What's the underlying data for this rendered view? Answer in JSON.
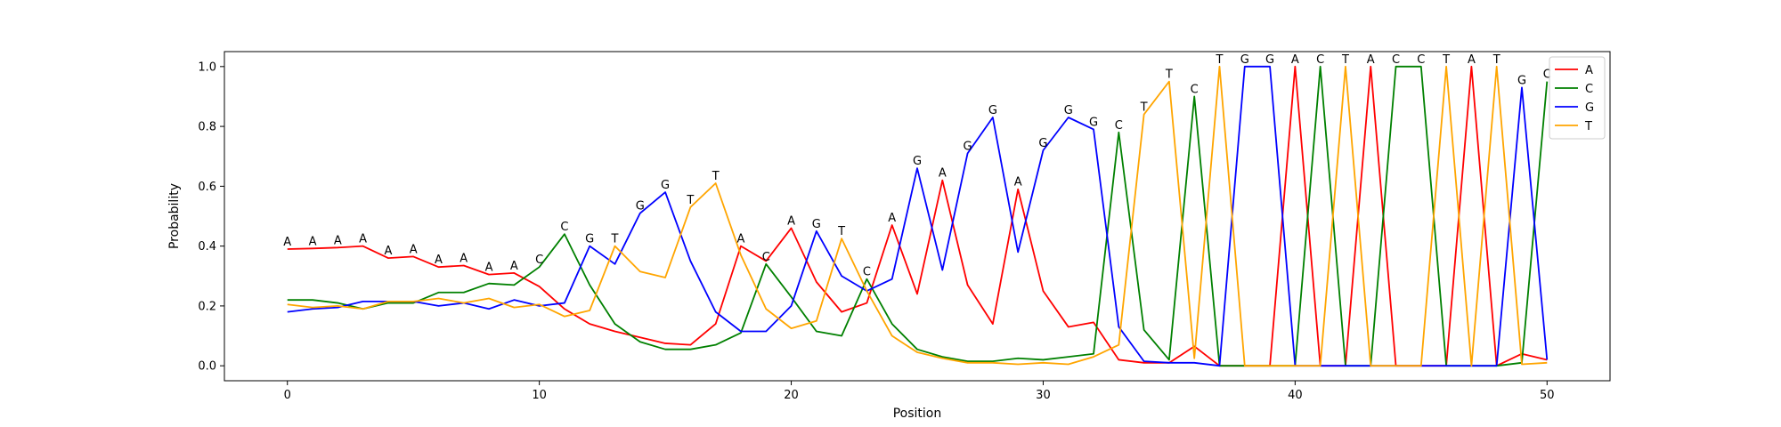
{
  "chart_data": {
    "type": "line",
    "xlabel": "Position",
    "ylabel": "Probability",
    "xlim": [
      -2.5,
      52.5
    ],
    "ylim": [
      -0.05,
      1.05
    ],
    "xticks": [
      0,
      10,
      20,
      30,
      40,
      50
    ],
    "yticks": [
      0.0,
      0.2,
      0.4,
      0.6,
      0.8,
      1.0
    ],
    "xtick_labels": [
      "0",
      "10",
      "20",
      "30",
      "40",
      "50"
    ],
    "ytick_labels": [
      "0.0",
      "0.2",
      "0.4",
      "0.6",
      "0.8",
      "1.0"
    ],
    "grid": false,
    "legend_position": "upper right",
    "x": [
      0,
      1,
      2,
      3,
      4,
      5,
      6,
      7,
      8,
      9,
      10,
      11,
      12,
      13,
      14,
      15,
      16,
      17,
      18,
      19,
      20,
      21,
      22,
      23,
      24,
      25,
      26,
      27,
      28,
      29,
      30,
      31,
      32,
      33,
      34,
      35,
      36,
      37,
      38,
      39,
      40,
      41,
      42,
      43,
      44,
      45,
      46,
      47,
      48,
      49,
      50
    ],
    "series": [
      {
        "name": "A",
        "color": "#ff0000",
        "values": [
          0.39,
          0.392,
          0.395,
          0.4,
          0.36,
          0.365,
          0.33,
          0.335,
          0.305,
          0.31,
          0.265,
          0.19,
          0.14,
          0.115,
          0.095,
          0.075,
          0.07,
          0.14,
          0.4,
          0.35,
          0.46,
          0.28,
          0.18,
          0.21,
          0.47,
          0.24,
          0.62,
          0.27,
          0.14,
          0.59,
          0.25,
          0.13,
          0.145,
          0.02,
          0.01,
          0.01,
          0.065,
          0.0,
          0.0,
          0.0,
          1.0,
          0.0,
          0.0,
          1.0,
          0.0,
          0.0,
          0.0,
          1.0,
          0.0,
          0.04,
          0.02
        ]
      },
      {
        "name": "C",
        "color": "#008000",
        "values": [
          0.22,
          0.22,
          0.21,
          0.19,
          0.21,
          0.21,
          0.245,
          0.245,
          0.275,
          0.27,
          0.33,
          0.44,
          0.27,
          0.14,
          0.08,
          0.055,
          0.055,
          0.07,
          0.11,
          0.34,
          0.23,
          0.115,
          0.1,
          0.29,
          0.14,
          0.055,
          0.03,
          0.015,
          0.015,
          0.025,
          0.02,
          0.03,
          0.04,
          0.78,
          0.12,
          0.02,
          0.9,
          0.0,
          0.0,
          0.0,
          0.0,
          1.0,
          0.0,
          0.0,
          1.0,
          1.0,
          0.0,
          0.0,
          0.0,
          0.01,
          0.95
        ]
      },
      {
        "name": "G",
        "color": "#0000ff",
        "values": [
          0.18,
          0.19,
          0.195,
          0.215,
          0.215,
          0.215,
          0.2,
          0.21,
          0.19,
          0.22,
          0.2,
          0.21,
          0.4,
          0.34,
          0.51,
          0.58,
          0.35,
          0.18,
          0.115,
          0.115,
          0.2,
          0.45,
          0.3,
          0.25,
          0.29,
          0.66,
          0.32,
          0.71,
          0.83,
          0.38,
          0.72,
          0.83,
          0.79,
          0.13,
          0.015,
          0.01,
          0.01,
          0.0,
          1.0,
          1.0,
          0.0,
          0.0,
          0.0,
          0.0,
          0.0,
          0.0,
          0.0,
          0.0,
          0.0,
          0.93,
          0.02
        ]
      },
      {
        "name": "T",
        "color": "#ffa500",
        "values": [
          0.205,
          0.195,
          0.2,
          0.19,
          0.215,
          0.215,
          0.225,
          0.21,
          0.225,
          0.195,
          0.205,
          0.165,
          0.185,
          0.4,
          0.315,
          0.295,
          0.53,
          0.61,
          0.37,
          0.19,
          0.125,
          0.15,
          0.425,
          0.25,
          0.1,
          0.045,
          0.025,
          0.01,
          0.01,
          0.005,
          0.01,
          0.005,
          0.03,
          0.07,
          0.84,
          0.95,
          0.025,
          1.0,
          0.0,
          0.0,
          0.0,
          0.0,
          1.0,
          0.0,
          0.0,
          0.0,
          1.0,
          0.0,
          1.0,
          0.005,
          0.01
        ]
      }
    ],
    "annotations": {
      "letters": [
        "A",
        "A",
        "A",
        "A",
        "A",
        "A",
        "A",
        "A",
        "A",
        "A",
        "C",
        "C",
        "G",
        "T",
        "G",
        "G",
        "T",
        "T",
        "A",
        "C",
        "A",
        "G",
        "T",
        "C",
        "A",
        "G",
        "A",
        "G",
        "G",
        "A",
        "G",
        "G",
        "G",
        "C",
        "T",
        "T",
        "C",
        "T",
        "G",
        "G",
        "A",
        "C",
        "T",
        "A",
        "C",
        "C",
        "T",
        "A",
        "T",
        "G",
        "C"
      ],
      "values": [
        0.39,
        0.392,
        0.395,
        0.4,
        0.36,
        0.365,
        0.33,
        0.335,
        0.305,
        0.31,
        0.33,
        0.44,
        0.4,
        0.4,
        0.51,
        0.58,
        0.53,
        0.61,
        0.4,
        0.34,
        0.46,
        0.45,
        0.425,
        0.29,
        0.47,
        0.66,
        0.62,
        0.71,
        0.83,
        0.59,
        0.72,
        0.83,
        0.79,
        0.78,
        0.84,
        0.95,
        0.9,
        1.0,
        1.0,
        1.0,
        1.0,
        1.0,
        1.0,
        1.0,
        1.0,
        1.0,
        1.0,
        1.0,
        1.0,
        0.93,
        0.95
      ]
    }
  }
}
